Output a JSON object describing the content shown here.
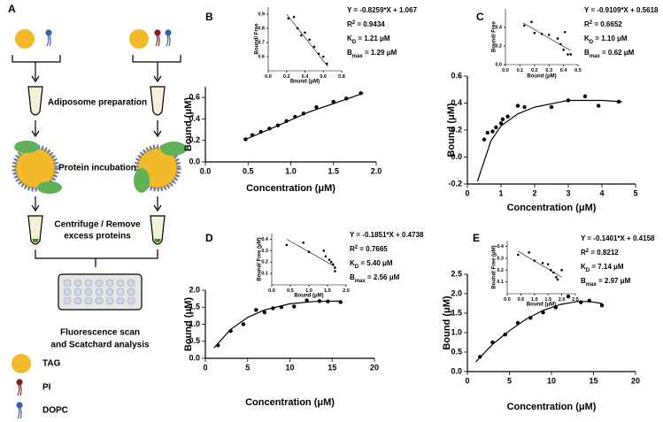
{
  "panel_labels": [
    "A",
    "B",
    "C",
    "D",
    "E"
  ],
  "panel_a": {
    "steps": [
      "Adiposome preparation",
      "Protein incubation"
    ],
    "centrifuge": [
      "Centrifuge / Remove",
      "excess proteins"
    ],
    "analysis": [
      "Fluorescence scan",
      "and Scatchard analysis"
    ],
    "legend": [
      "TAG",
      "PI",
      "DOPC"
    ]
  },
  "chart_data": [
    {
      "type": "scatter",
      "xlabel": "Concentration (μM)",
      "ylabel": "Bound (μM)",
      "x": [
        0.47,
        0.55,
        0.65,
        0.75,
        0.85,
        0.95,
        1.05,
        1.15,
        1.3,
        1.5,
        1.65,
        1.82
      ],
      "values": [
        0.21,
        0.25,
        0.28,
        0.31,
        0.34,
        0.38,
        0.42,
        0.45,
        0.51,
        0.56,
        0.59,
        0.64
      ],
      "fit": {
        "x": [
          0.47,
          0.8,
          1.2,
          1.6,
          1.85
        ],
        "values": [
          0.21,
          0.32,
          0.46,
          0.57,
          0.64
        ]
      },
      "xlim": [
        0,
        2
      ],
      "ylim": [
        0,
        0.7
      ],
      "xticks": [
        {
          "value": 0,
          "label": "0.0"
        },
        0.5,
        {
          "value": 1,
          "label": "1.0"
        },
        1.5,
        {
          "value": 2,
          "label": "2.0"
        }
      ],
      "yticks": [
        {
          "value": 0,
          "label": "0.0"
        },
        0.2,
        0.4,
        0.6
      ],
      "color": "#000000"
    },
    {
      "type": "scatter",
      "xlabel": "Bound (μM)",
      "ylabel": "Bound/ Free",
      "x": [
        0.22,
        0.28,
        0.32,
        0.36,
        0.4,
        0.45,
        0.5,
        0.55,
        0.6,
        0.64
      ],
      "values": [
        0.87,
        0.88,
        0.8,
        0.75,
        0.77,
        0.72,
        0.67,
        0.62,
        0.6,
        0.55
      ],
      "fit": {
        "x": [
          0.2,
          0.65
        ],
        "values": [
          0.9,
          0.53
        ]
      },
      "xlim": [
        0,
        0.8
      ],
      "ylim": [
        0.5,
        0.95
      ],
      "xticks": [
        {
          "value": 0,
          "label": "0.0"
        },
        0.2,
        0.4,
        0.6,
        0.8
      ],
      "yticks": [
        0.6,
        0.7,
        0.8,
        0.9
      ],
      "color": "#000000",
      "annotations": [
        {
          "text": "Y = -0.8259*X + 1.067"
        },
        {
          "main": "R",
          "sup": "2",
          "rest": " = 0.9434"
        },
        {
          "main": "K",
          "sub": "D",
          "rest": " = 1.21 μM"
        },
        {
          "main": "B",
          "sub": "max",
          "rest": " = 1.29 μM"
        }
      ]
    },
    {
      "type": "scatter",
      "xlabel": "Concentration (μM)",
      "ylabel": "Bound (μM)",
      "x": [
        0.5,
        0.6,
        0.75,
        0.85,
        1.0,
        1.05,
        1.2,
        1.5,
        1.7,
        2.5,
        3.0,
        3.5,
        3.9,
        4.5
      ],
      "values": [
        0.13,
        0.18,
        0.19,
        0.22,
        0.25,
        0.28,
        0.3,
        0.38,
        0.37,
        0.37,
        0.42,
        0.45,
        0.38,
        0.41
      ],
      "fit": {
        "x": [
          0.3,
          0.7,
          1.0,
          1.5,
          2.0,
          3.0,
          4.0,
          4.6
        ],
        "values": [
          -0.18,
          0.12,
          0.23,
          0.32,
          0.37,
          0.42,
          0.42,
          0.41
        ]
      },
      "xlim": [
        0,
        5
      ],
      "ylim": [
        -0.2,
        0.6
      ],
      "xticks": [
        0,
        1,
        2,
        3,
        4,
        5
      ],
      "yticks": [
        -0.2,
        {
          "value": 0,
          "label": "0.0"
        },
        0.2,
        0.4,
        0.6
      ],
      "color": "#000000"
    },
    {
      "type": "scatter",
      "xlabel": "Bound (μM)",
      "ylabel": "Bound/ Free",
      "x": [
        0.13,
        0.18,
        0.2,
        0.25,
        0.3,
        0.36,
        0.38,
        0.4,
        0.41,
        0.43,
        0.45
      ],
      "values": [
        0.42,
        0.46,
        0.34,
        0.33,
        0.32,
        0.28,
        0.22,
        0.16,
        0.35,
        0.11,
        0.11
      ],
      "fit": {
        "x": [
          0.12,
          0.45
        ],
        "values": [
          0.45,
          0.15
        ]
      },
      "xlim": [
        0,
        0.5
      ],
      "ylim": [
        0,
        0.6
      ],
      "xticks": [
        {
          "value": 0,
          "label": "0.0"
        },
        0.1,
        0.2,
        0.3,
        0.4,
        0.5
      ],
      "yticks": [
        {
          "value": 0,
          "label": "0.0"
        },
        0.2,
        0.4
      ],
      "color": "#000000",
      "annotations": [
        {
          "text": "Y = -0.9109*X + 0.5618"
        },
        {
          "main": "R",
          "sup": "2",
          "rest": " = 0.6652"
        },
        {
          "main": "K",
          "sub": "D",
          "rest": " = 1.10 μM"
        },
        {
          "main": "B",
          "sub": "max",
          "rest": " = 0.62 μM"
        }
      ]
    },
    {
      "type": "scatter",
      "xlabel": "Concentration (μM)",
      "ylabel": "Bound (μM)",
      "x": [
        1.5,
        3,
        4.5,
        6,
        7,
        8,
        9,
        10.5,
        12,
        13.5,
        14.5,
        16
      ],
      "values": [
        0.38,
        0.8,
        1.0,
        1.42,
        1.35,
        1.47,
        1.5,
        1.52,
        1.7,
        1.68,
        1.67,
        1.65
      ],
      "fit": {
        "x": [
          1,
          3,
          5,
          7,
          10,
          13,
          16
        ],
        "values": [
          0.3,
          0.85,
          1.2,
          1.42,
          1.6,
          1.67,
          1.68
        ]
      },
      "xlim": [
        0,
        20
      ],
      "ylim": [
        0,
        2
      ],
      "xticks": [
        0,
        5,
        10,
        15,
        20
      ],
      "yticks": [
        {
          "value": 0,
          "label": "0.0"
        },
        0.5,
        {
          "value": 1,
          "label": "1.0"
        },
        1.5,
        {
          "value": 2,
          "label": "2.0"
        }
      ],
      "color": "#000000"
    },
    {
      "type": "scatter",
      "xlabel": "Bound (μM)",
      "ylabel": "Bound/ Free (μM)",
      "x": [
        0.4,
        0.85,
        1.0,
        1.4,
        1.45,
        1.55,
        1.6,
        1.65,
        1.7,
        1.7
      ],
      "values": [
        0.35,
        0.37,
        0.29,
        0.3,
        0.25,
        0.22,
        0.2,
        0.18,
        0.15,
        0.12
      ],
      "fit": {
        "x": [
          0.4,
          1.7
        ],
        "values": [
          0.4,
          0.16
        ]
      },
      "xlim": [
        0,
        2
      ],
      "ylim": [
        0,
        0.45
      ],
      "xticks": [
        {
          "value": 0,
          "label": "0.0"
        },
        0.5,
        {
          "value": 1,
          "label": "1.0"
        },
        1.5,
        {
          "value": 2,
          "label": "2.0"
        }
      ],
      "yticks": [
        0.1,
        0.2,
        0.3,
        0.4
      ],
      "color": "#000000",
      "annotations": [
        {
          "text": "Y = -0.1851*X + 0.4738"
        },
        {
          "main": "R",
          "sup": "2",
          "rest": " = 0.7665"
        },
        {
          "main": "K",
          "sub": "D",
          "rest": " = 5.40 μM"
        },
        {
          "main": "B",
          "sub": "max",
          "rest": " = 2.56 μM"
        }
      ]
    },
    {
      "type": "scatter",
      "xlabel": "Concentration (μM)",
      "ylabel": "Bound (μM)",
      "x": [
        1.5,
        3,
        4.5,
        6,
        7.5,
        9,
        10.5,
        12,
        13.5,
        14.5,
        16
      ],
      "values": [
        0.38,
        0.75,
        0.95,
        1.25,
        1.38,
        1.52,
        1.65,
        1.93,
        1.78,
        1.82,
        1.7
      ],
      "fit": {
        "x": [
          1,
          3,
          5,
          7,
          9,
          11,
          13,
          14.5,
          16
        ],
        "values": [
          0.25,
          0.7,
          1.05,
          1.35,
          1.57,
          1.72,
          1.8,
          1.8,
          1.75
        ]
      },
      "xlim": [
        0,
        20
      ],
      "ylim": [
        0,
        2.5
      ],
      "xticks": [
        0,
        5,
        10,
        15,
        20
      ],
      "yticks": [
        {
          "value": 0,
          "label": "0.0"
        },
        0.5,
        {
          "value": 1,
          "label": "1.0"
        },
        1.5,
        {
          "value": 2,
          "label": "2.0"
        },
        2.5
      ],
      "color": "#000000"
    },
    {
      "type": "scatter",
      "xlabel": "Bound (μM)",
      "ylabel": "Bound/ Free (μM)",
      "x": [
        0.4,
        0.8,
        1.0,
        1.3,
        1.5,
        1.6,
        1.7,
        1.8,
        1.85,
        2.0
      ],
      "values": [
        0.33,
        0.35,
        0.28,
        0.26,
        0.25,
        0.2,
        0.18,
        0.14,
        0.12,
        0.2
      ],
      "fit": {
        "x": [
          0.4,
          2.0
        ],
        "values": [
          0.36,
          0.14
        ]
      },
      "xlim": [
        0,
        2.5
      ],
      "ylim": [
        0,
        0.45
      ],
      "xticks": [
        {
          "value": 0,
          "label": "0.0"
        },
        0.5,
        {
          "value": 1,
          "label": "1.0"
        },
        1.5,
        {
          "value": 2,
          "label": "2.0"
        },
        2.5
      ],
      "yticks": [
        0.1,
        0.2,
        0.3,
        0.4
      ],
      "color": "#000000",
      "annotations": [
        {
          "text": "Y = -0.1401*X + 0.4158"
        },
        {
          "main": "R",
          "sup": "2",
          "rest": " = 0.8212"
        },
        {
          "main": "K",
          "sub": "D",
          "rest": " = 7.14 μM"
        },
        {
          "main": "B",
          "sub": "max",
          "rest": " = 2.97 μM"
        }
      ]
    }
  ]
}
